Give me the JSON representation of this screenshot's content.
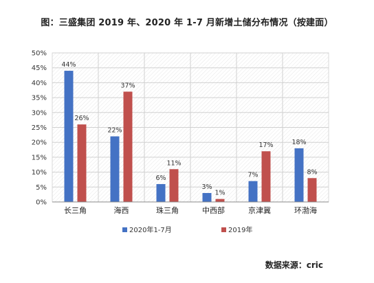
{
  "chart_data": {
    "type": "bar",
    "title": "图：三盛集团 2019 年、2020 年 1-7 月新增土储分布情况（按建面）",
    "categories": [
      "长三角",
      "海西",
      "珠三角",
      "中西部",
      "京津冀",
      "环渤海"
    ],
    "series": [
      {
        "name": "2020年1-7月",
        "values": [
          44,
          22,
          6,
          3,
          7,
          18
        ],
        "color": "#4472C4"
      },
      {
        "name": "2019年",
        "values": [
          26,
          37,
          11,
          1,
          17,
          8
        ],
        "color": "#C0504D"
      }
    ],
    "data_labels": [
      [
        "44%",
        "22%",
        "6%",
        "3%",
        "7%",
        "18%"
      ],
      [
        "26%",
        "37%",
        "11%",
        "1%",
        "17%",
        "8%"
      ]
    ],
    "y_ticks": [
      "0%",
      "5%",
      "10%",
      "15%",
      "20%",
      "25%",
      "30%",
      "35%",
      "40%",
      "45%",
      "50%"
    ],
    "ylim": [
      0,
      50
    ],
    "grid": true,
    "legend_position": "bottom"
  },
  "source_note": "数据来源：cric"
}
